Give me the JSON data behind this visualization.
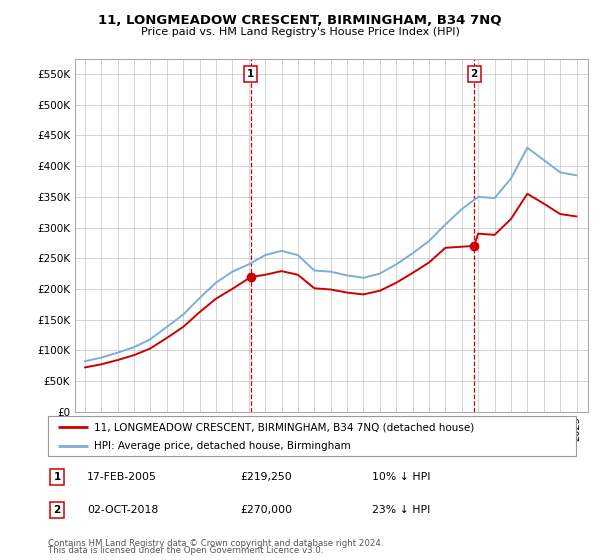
{
  "title": "11, LONGMEADOW CRESCENT, BIRMINGHAM, B34 7NQ",
  "subtitle": "Price paid vs. HM Land Registry's House Price Index (HPI)",
  "ylabel_vals": [
    0,
    50000,
    100000,
    150000,
    200000,
    250000,
    300000,
    350000,
    400000,
    450000,
    500000,
    550000
  ],
  "ylim": [
    0,
    575000
  ],
  "sale1_year": 2005.12,
  "sale1_price": 219250,
  "sale2_year": 2018.75,
  "sale2_price": 270000,
  "legend_property": "11, LONGMEADOW CRESCENT, BIRMINGHAM, B34 7NQ (detached house)",
  "legend_hpi": "HPI: Average price, detached house, Birmingham",
  "footer1": "Contains HM Land Registry data © Crown copyright and database right 2024.",
  "footer2": "This data is licensed under the Open Government Licence v3.0.",
  "table_rows": [
    {
      "label": "1",
      "date": "17-FEB-2005",
      "price": "£219,250",
      "pct": "10% ↓ HPI"
    },
    {
      "label": "2",
      "date": "02-OCT-2018",
      "price": "£270,000",
      "pct": "23% ↓ HPI"
    }
  ],
  "property_color": "#cc0000",
  "hpi_color": "#7bafd4",
  "vline_color": "#cc0000",
  "bg_color": "#ffffff",
  "grid_color": "#cccccc",
  "hpi_data_years": [
    1995,
    1996,
    1997,
    1998,
    1999,
    2000,
    2001,
    2002,
    2003,
    2004,
    2005,
    2006,
    2007,
    2008,
    2009,
    2010,
    2011,
    2012,
    2013,
    2014,
    2015,
    2016,
    2017,
    2018,
    2019,
    2020,
    2021,
    2022,
    2023,
    2024,
    2025
  ],
  "hpi_data_vals": [
    82000,
    88000,
    96000,
    105000,
    118000,
    138000,
    158000,
    185000,
    210000,
    228000,
    240000,
    255000,
    262000,
    255000,
    230000,
    228000,
    222000,
    218000,
    225000,
    240000,
    258000,
    278000,
    305000,
    330000,
    350000,
    348000,
    380000,
    430000,
    410000,
    390000,
    385000
  ],
  "prop_data_years": [
    1995,
    1996,
    1997,
    1998,
    1999,
    2000,
    2001,
    2002,
    2003,
    2004,
    2005.12,
    2006,
    2007,
    2008,
    2009,
    2010,
    2011,
    2012,
    2013,
    2014,
    2015,
    2016,
    2017,
    2018.75,
    2019,
    2020,
    2021,
    2022,
    2023,
    2024,
    2025
  ],
  "prop_data_vals": [
    72000,
    77000,
    84000,
    92000,
    103000,
    120000,
    138000,
    162000,
    184000,
    200000,
    219250,
    223000,
    229000,
    223000,
    201000,
    199000,
    194000,
    191000,
    197000,
    210000,
    226000,
    243000,
    267000,
    270000,
    290000,
    288000,
    314000,
    355000,
    339000,
    322000,
    318000
  ]
}
